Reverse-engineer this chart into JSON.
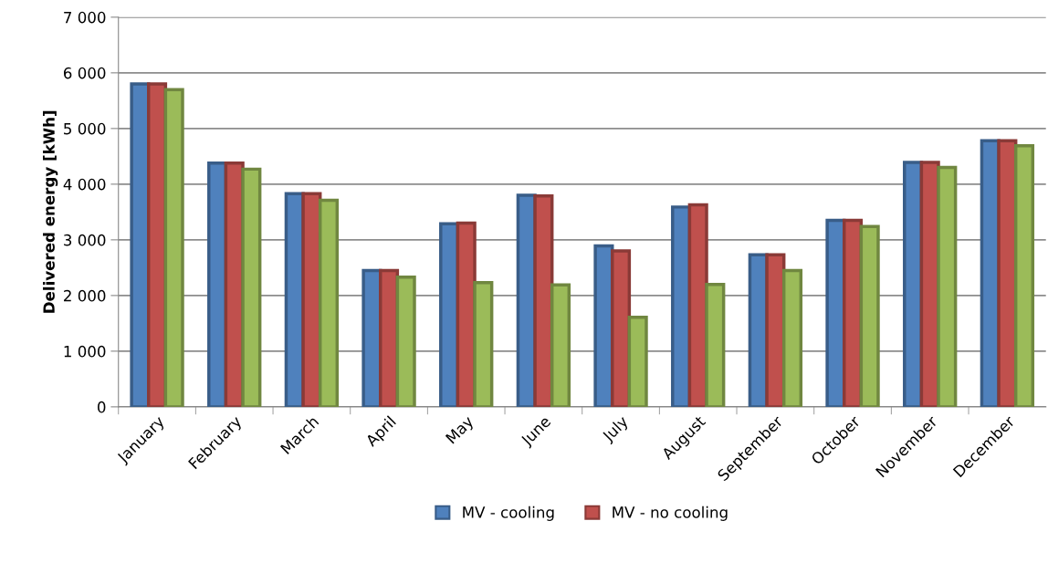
{
  "chart_data": {
    "type": "bar",
    "ylabel": "Delivered energy [kWh]",
    "categories": [
      "January",
      "February",
      "March",
      "April",
      "May",
      "June",
      "July",
      "August",
      "September",
      "October",
      "November",
      "December"
    ],
    "series": [
      {
        "name": "MV - cooling",
        "color": "#4f81bd",
        "values": [
          5800,
          4380,
          3830,
          2450,
          3290,
          3800,
          2890,
          3590,
          2730,
          3350,
          4390,
          4780
        ]
      },
      {
        "name": "MV - no cooling",
        "color": "#c0504d",
        "values": [
          5800,
          4380,
          3830,
          2450,
          3300,
          3790,
          2800,
          3630,
          2730,
          3350,
          4390,
          4780
        ]
      },
      {
        "color": "#9bbb59",
        "values": [
          5700,
          4270,
          3710,
          2330,
          2230,
          2190,
          1610,
          2200,
          2450,
          3240,
          4300,
          4690
        ]
      }
    ],
    "ylim": [
      0,
      7000
    ],
    "yticks": [
      0,
      {
        "value": 1000,
        "label": "1 000"
      },
      {
        "value": 2000,
        "label": "2 000"
      },
      {
        "value": 3000,
        "label": "3 000"
      },
      {
        "value": 4000,
        "label": "4 000"
      },
      {
        "value": 5000,
        "label": "5 000"
      },
      {
        "value": 6000,
        "label": "6 000"
      },
      {
        "value": 7000,
        "label": "7 000"
      }
    ],
    "grid": "y",
    "legend": "bottom"
  }
}
